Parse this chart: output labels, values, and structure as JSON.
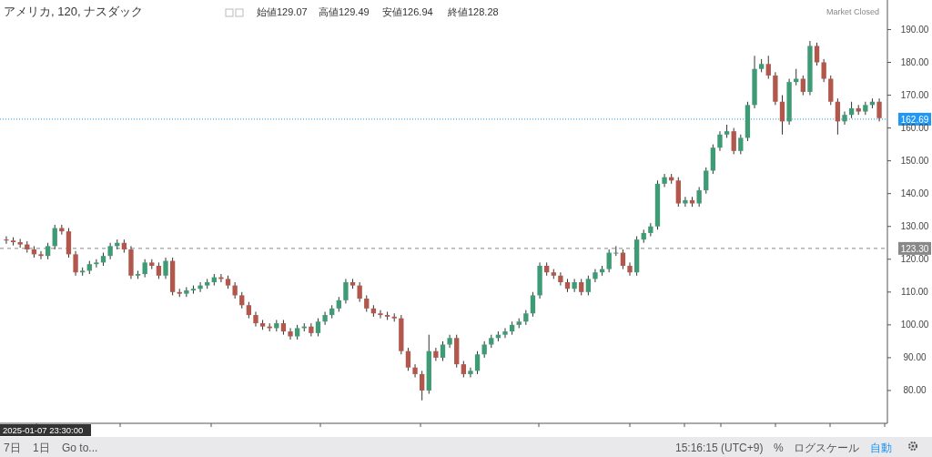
{
  "chart_data": {
    "type": "candlestick",
    "title": "アメリカ, 120, ナスダック",
    "annotations": [
      "始値129.07",
      "高値129.49",
      "安値126.94",
      "終値128.28",
      "Market Closed",
      "2025-01-07 23:30:00",
      "7日",
      "1日",
      "Go to...",
      "15:16:15 (UTC+9)",
      "%",
      "ログスケール",
      "自動"
    ],
    "categories": [
      null,
      null,
      null,
      null,
      null,
      null,
      null,
      null,
      null,
      null,
      null,
      null,
      null,
      null,
      null,
      null,
      null,
      null,
      null,
      null,
      null,
      null,
      null,
      null,
      null,
      null,
      null,
      null,
      null,
      null,
      null,
      null,
      null,
      null,
      null,
      null,
      null,
      null,
      null,
      null,
      null,
      null,
      null,
      null,
      null,
      null,
      null,
      null,
      null,
      null,
      null,
      null,
      null,
      null,
      null,
      null,
      null,
      null,
      null,
      null,
      null,
      null,
      null,
      null,
      null,
      null,
      null,
      null,
      null,
      null,
      null,
      null,
      null,
      null,
      null,
      null,
      null,
      null,
      null,
      null,
      null,
      null,
      null,
      null,
      null,
      null,
      null,
      null,
      null,
      null,
      null,
      null,
      null,
      null,
      null,
      null,
      null,
      null,
      null,
      null,
      null,
      null,
      null,
      null,
      null,
      null,
      null,
      null,
      null,
      null,
      null,
      null,
      null,
      null,
      null,
      null,
      null,
      null,
      null,
      null,
      null,
      null,
      null,
      null,
      null,
      null,
      null
    ],
    "ohlc": [
      [
        126,
        127,
        124.7,
        125.7
      ],
      [
        125.7,
        126.7,
        124.2,
        125.2
      ],
      [
        125.2,
        126.2,
        123.5,
        124.5
      ],
      [
        124.5,
        125.5,
        122,
        123
      ],
      [
        123,
        124,
        120.5,
        121.5
      ],
      [
        121.5,
        122.5,
        120,
        121
      ],
      [
        121,
        125,
        120,
        124
      ],
      [
        124,
        130.5,
        123,
        129.5
      ],
      [
        129.5,
        130.5,
        127.5,
        128.5
      ],
      [
        128.5,
        129.5,
        120.5,
        121.5
      ],
      [
        121.5,
        122.5,
        115,
        116
      ],
      [
        116,
        117.5,
        115,
        116.5
      ],
      [
        116.5,
        119.5,
        115.5,
        118.5
      ],
      [
        118.5,
        120,
        117.5,
        119
      ],
      [
        119,
        122,
        118,
        121
      ],
      [
        121,
        125,
        120,
        124
      ],
      [
        124,
        126,
        123,
        125
      ],
      [
        125,
        126,
        122,
        123
      ],
      [
        123,
        124,
        114,
        115
      ],
      [
        115,
        116.5,
        114,
        115.5
      ],
      [
        115.5,
        120,
        114.5,
        119
      ],
      [
        119,
        120,
        117,
        118
      ],
      [
        118,
        119,
        114,
        115
      ],
      [
        115,
        120.5,
        114,
        119.5
      ],
      [
        119.5,
        120.5,
        109,
        110
      ],
      [
        110,
        111,
        108.5,
        109.5
      ],
      [
        109.5,
        111.5,
        108.5,
        110.5
      ],
      [
        110.5,
        112,
        109.5,
        111
      ],
      [
        111,
        113,
        110,
        112
      ],
      [
        112,
        114,
        111,
        113
      ],
      [
        113,
        115.5,
        112,
        114.5
      ],
      [
        114.5,
        115.5,
        113,
        114
      ],
      [
        114,
        115,
        111,
        112
      ],
      [
        112,
        113,
        108,
        109
      ],
      [
        109,
        110,
        105,
        106
      ],
      [
        106,
        107,
        102,
        103
      ],
      [
        103,
        104,
        99.5,
        100.5
      ],
      [
        100.5,
        101.5,
        98.5,
        99.5
      ],
      [
        99.5,
        100.5,
        98,
        99
      ],
      [
        99,
        101.5,
        98,
        100.5
      ],
      [
        100.5,
        101.5,
        97,
        98
      ],
      [
        98,
        99,
        95.5,
        96.5
      ],
      [
        96.5,
        100,
        95.5,
        99
      ],
      [
        99,
        100.5,
        98,
        99.5
      ],
      [
        99.5,
        100.5,
        96.5,
        97.5
      ],
      [
        97.5,
        102,
        96.5,
        101
      ],
      [
        101,
        104,
        100,
        103
      ],
      [
        103,
        106,
        102,
        105
      ],
      [
        105,
        108.5,
        104,
        107.5
      ],
      [
        107.5,
        114,
        106.5,
        113
      ],
      [
        113,
        114,
        111,
        112
      ],
      [
        112,
        113,
        107,
        108
      ],
      [
        108,
        109,
        104,
        105
      ],
      [
        105,
        106,
        102.5,
        103.5
      ],
      [
        103.5,
        104.5,
        102,
        103
      ],
      [
        103,
        104,
        101.5,
        102.5
      ],
      [
        102.5,
        103.5,
        101,
        102
      ],
      [
        102,
        103,
        91,
        92
      ],
      [
        92,
        93,
        86,
        87
      ],
      [
        87,
        88,
        84,
        85
      ],
      [
        85,
        86,
        77,
        80
      ],
      [
        80,
        97,
        79,
        92
      ],
      [
        92,
        93,
        89,
        90
      ],
      [
        90,
        95,
        89,
        94
      ],
      [
        94,
        97,
        93,
        96
      ],
      [
        96,
        97,
        87,
        88
      ],
      [
        88,
        89,
        84,
        85
      ],
      [
        85,
        87,
        84,
        86
      ],
      [
        86,
        92,
        85,
        91
      ],
      [
        91,
        95,
        90,
        94
      ],
      [
        94,
        97,
        93,
        96
      ],
      [
        96,
        98,
        95,
        97
      ],
      [
        97,
        99,
        96,
        98
      ],
      [
        98,
        101,
        97,
        100
      ],
      [
        100,
        102,
        99,
        101
      ],
      [
        101,
        104.5,
        100,
        103.5
      ],
      [
        103.5,
        110,
        102.5,
        109
      ],
      [
        109,
        119,
        108,
        118
      ],
      [
        118,
        119,
        115,
        116
      ],
      [
        116,
        117,
        114,
        115
      ],
      [
        115,
        116,
        112,
        113
      ],
      [
        113,
        114,
        110,
        111
      ],
      [
        111,
        114,
        110,
        113
      ],
      [
        113,
        114,
        109,
        110
      ],
      [
        110,
        115,
        109,
        114
      ],
      [
        114,
        117,
        113,
        116
      ],
      [
        116,
        118,
        115,
        117
      ],
      [
        117,
        123,
        116,
        122
      ],
      [
        122,
        124,
        121,
        122
      ],
      [
        122,
        123,
        117,
        118
      ],
      [
        118,
        119,
        115,
        116
      ],
      [
        116,
        127,
        115,
        126
      ],
      [
        126,
        129,
        125,
        128
      ],
      [
        128,
        131,
        127,
        130
      ],
      [
        130,
        144,
        129,
        143
      ],
      [
        143,
        146,
        142,
        145
      ],
      [
        145,
        146,
        143,
        144
      ],
      [
        144,
        145,
        136,
        137
      ],
      [
        137,
        139,
        136,
        138
      ],
      [
        138,
        139,
        136,
        137
      ],
      [
        137,
        142,
        136,
        141
      ],
      [
        141,
        148,
        140,
        147
      ],
      [
        147,
        155,
        146,
        154
      ],
      [
        154,
        159,
        153,
        158
      ],
      [
        158,
        161,
        157,
        159
      ],
      [
        159,
        160,
        152,
        153
      ],
      [
        153,
        158,
        152,
        157
      ],
      [
        157,
        168,
        156,
        167
      ],
      [
        167,
        182,
        166,
        178
      ],
      [
        178,
        181,
        177,
        179.5
      ],
      [
        179.5,
        182,
        175,
        176
      ],
      [
        176,
        177,
        167,
        168
      ],
      [
        168,
        170,
        158,
        162
      ],
      [
        162,
        175,
        161,
        174
      ],
      [
        174,
        178,
        173,
        175
      ],
      [
        175,
        176,
        170,
        171
      ],
      [
        171,
        186.5,
        170,
        185
      ],
      [
        185,
        186,
        179,
        180
      ],
      [
        180,
        181,
        174,
        175
      ],
      [
        175,
        176,
        167,
        168
      ],
      [
        168,
        169,
        158,
        162
      ],
      [
        162,
        165,
        161,
        164
      ],
      [
        164,
        168,
        163,
        166
      ],
      [
        166,
        167,
        164,
        165
      ],
      [
        165,
        168,
        164,
        167
      ],
      [
        167,
        169,
        166,
        168
      ],
      [
        168,
        169,
        162,
        163
      ]
    ],
    "ylim": [
      70,
      199
    ],
    "yticks": [
      {
        "value": 80,
        "label": "80.00"
      },
      {
        "value": 90,
        "label": "90.00"
      },
      {
        "value": 100,
        "label": "100.00"
      },
      {
        "value": 110,
        "label": "110.00"
      },
      {
        "value": 120,
        "label": "120.00"
      },
      {
        "value": 130,
        "label": "130.00"
      },
      {
        "value": 140,
        "label": "140.00"
      },
      {
        "value": 150,
        "label": "150.00"
      },
      {
        "value": 160,
        "label": "160.00"
      },
      {
        "value": 170,
        "label": "170.00"
      },
      {
        "value": 180,
        "label": "180.00"
      },
      {
        "value": 190,
        "label": "190.00"
      }
    ],
    "tick_labels": "y",
    "ref_lines": [
      {
        "axis": "y",
        "value": 162.69,
        "label": "162.69",
        "color": "#2196f3",
        "line_style": "dotted"
      },
      {
        "axis": "y",
        "value": 123.3,
        "label": "123.30",
        "color": "#888888",
        "line_style": "dashed"
      }
    ]
  }
}
